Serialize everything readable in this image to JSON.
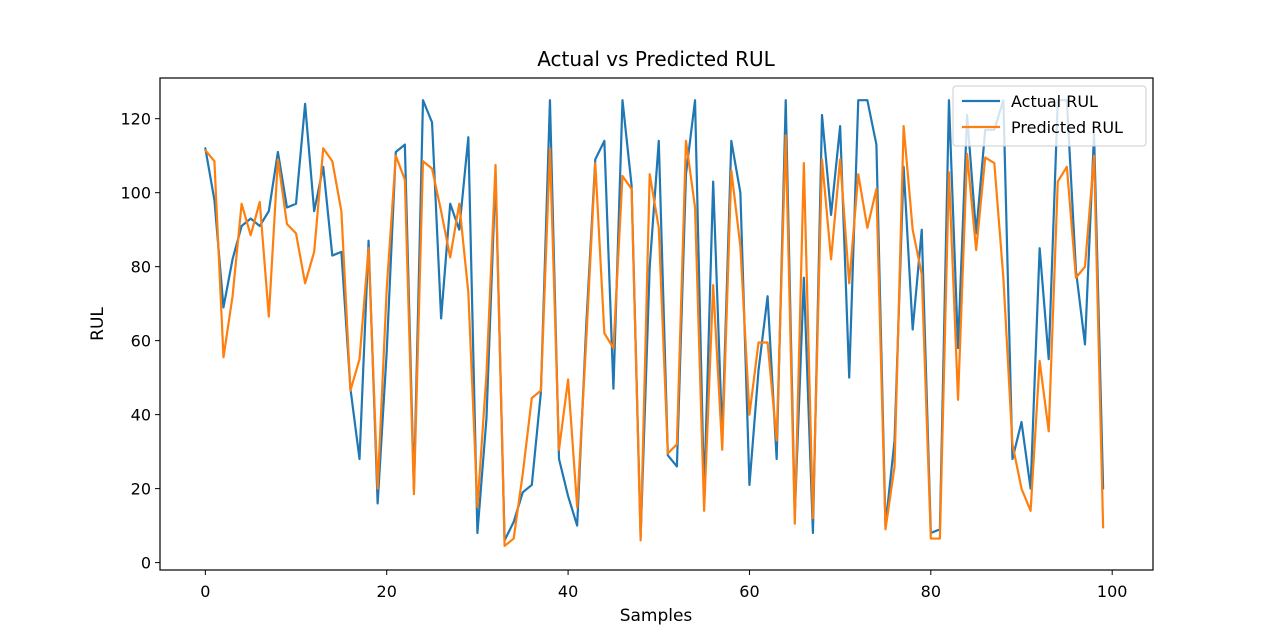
{
  "chart_data": {
    "type": "line",
    "title": "Actual vs Predicted RUL",
    "xlabel": "Samples",
    "ylabel": "RUL",
    "xlim": [
      -5,
      104.5
    ],
    "ylim": [
      -2,
      131
    ],
    "xticks": [
      0,
      20,
      40,
      60,
      80,
      100
    ],
    "yticks": [
      0,
      20,
      40,
      60,
      80,
      100,
      120
    ],
    "grid": false,
    "legend_position": "upper right",
    "x": [
      0,
      1,
      2,
      3,
      4,
      5,
      6,
      7,
      8,
      9,
      10,
      11,
      12,
      13,
      14,
      15,
      16,
      17,
      18,
      19,
      20,
      21,
      22,
      23,
      24,
      25,
      26,
      27,
      28,
      29,
      30,
      31,
      32,
      33,
      34,
      35,
      36,
      37,
      38,
      39,
      40,
      41,
      42,
      43,
      44,
      45,
      46,
      47,
      48,
      49,
      50,
      51,
      52,
      53,
      54,
      55,
      56,
      57,
      58,
      59,
      60,
      61,
      62,
      63,
      64,
      65,
      66,
      67,
      68,
      69,
      70,
      71,
      72,
      73,
      74,
      75,
      76,
      77,
      78,
      79,
      80,
      81,
      82,
      83,
      84,
      85,
      86,
      87,
      88,
      89,
      90,
      91,
      92,
      93,
      94,
      95,
      96,
      97,
      98,
      99
    ],
    "series": [
      {
        "name": "Actual RUL",
        "color": "#1f77b4",
        "values": [
          112,
          98,
          69,
          82,
          91,
          93,
          91,
          95,
          111,
          96,
          97,
          124,
          95,
          107,
          83,
          84,
          47,
          28,
          87,
          16,
          57,
          111,
          113,
          20,
          125,
          119,
          66,
          97,
          90,
          115,
          8,
          39,
          105,
          6,
          11,
          19,
          21,
          46,
          125,
          28,
          18,
          10,
          64,
          109,
          114,
          47,
          125,
          102,
          7,
          80,
          114,
          29,
          26,
          105,
          125,
          18,
          103,
          34,
          114,
          100,
          21,
          52,
          72,
          28,
          125,
          13,
          77,
          8,
          121,
          94,
          118,
          50,
          125,
          125,
          113,
          10,
          33,
          107,
          63,
          90,
          8,
          9,
          125,
          58,
          121,
          89,
          117,
          117,
          125,
          28,
          38,
          20,
          85,
          55,
          125,
          125,
          79,
          59,
          116,
          20
        ]
      },
      {
        "name": "Predicted RUL",
        "color": "#ff7f0e",
        "values": [
          111.5,
          108.5,
          55.5,
          72,
          97,
          88.5,
          97.5,
          66.5,
          109,
          91.5,
          89,
          75.5,
          84,
          112,
          108.5,
          95,
          46.5,
          55,
          85,
          20,
          74,
          110,
          103.5,
          18.5,
          108.5,
          106.5,
          95,
          82.5,
          97,
          73,
          15,
          51,
          107.5,
          4.5,
          6.5,
          24,
          44.5,
          46.5,
          112,
          30.5,
          49.5,
          15,
          60,
          108,
          62,
          58,
          104.5,
          101,
          6,
          105,
          90.5,
          29.5,
          32,
          114,
          96,
          14,
          75,
          30.5,
          106,
          85.5,
          40,
          59.5,
          59.5,
          33,
          115.5,
          10.5,
          108,
          12,
          109,
          82,
          109,
          75.5,
          105,
          90.5,
          101,
          9,
          26,
          118,
          90,
          78,
          6.5,
          6.5,
          105.5,
          44,
          110.5,
          84.5,
          109.5,
          108,
          77,
          32,
          20,
          14,
          54.5,
          35.5,
          103,
          107,
          77,
          80,
          110,
          9.5
        ]
      }
    ]
  }
}
